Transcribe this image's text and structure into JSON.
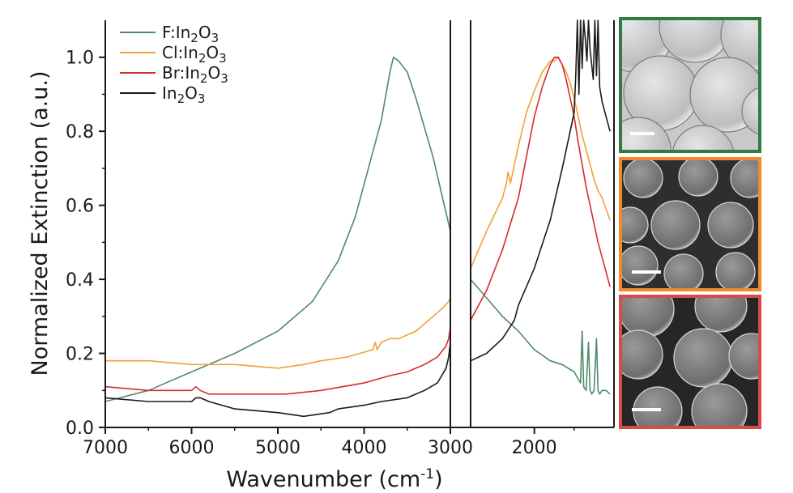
{
  "chart_data": {
    "type": "line",
    "title": "",
    "xlabel": "Wavenumber (cm",
    "xlabel_sup": "-1",
    "xlabel_suffix": ")",
    "ylabel": "Normalized Extinction (a.u.)",
    "xlim": [
      7000,
      1000
    ],
    "ylim": [
      0.0,
      1.1
    ],
    "x_axis_direction": "reversed",
    "x_ticks": [
      7000,
      6000,
      5000,
      4000,
      3000,
      2000
    ],
    "x_tick_labels": [
      "7000",
      "6000",
      "5000",
      "4000",
      "3000",
      "2000"
    ],
    "y_ticks": [
      0.0,
      0.2,
      0.4,
      0.6,
      0.8,
      1.0
    ],
    "y_tick_labels": [
      "0.0",
      "0.2",
      "0.4",
      "0.6",
      "0.8",
      "1.0"
    ],
    "axis_break": [
      3000,
      2800
    ],
    "grid": false,
    "legend_position": "top-left",
    "series": [
      {
        "name": "F:In2O3",
        "color": "#4e8a6c",
        "x": [
          7000,
          6500,
          6000,
          5500,
          5000,
          4600,
          4300,
          4100,
          3950,
          3800,
          3700,
          3660,
          3600,
          3500,
          3400,
          3300,
          3200,
          3100,
          3000,
          2800,
          2600,
          2400,
          2200,
          2000,
          1800,
          1650,
          1500,
          1420,
          1400,
          1380,
          1350,
          1320,
          1300,
          1280,
          1250,
          1220,
          1200,
          1180,
          1150,
          1100,
          1050
        ],
        "y": [
          0.07,
          0.1,
          0.15,
          0.2,
          0.26,
          0.34,
          0.45,
          0.57,
          0.7,
          0.83,
          0.96,
          1.0,
          0.99,
          0.96,
          0.89,
          0.81,
          0.73,
          0.63,
          0.53,
          0.4,
          0.35,
          0.3,
          0.26,
          0.21,
          0.18,
          0.17,
          0.15,
          0.12,
          0.26,
          0.11,
          0.1,
          0.23,
          0.1,
          0.09,
          0.1,
          0.24,
          0.1,
          0.09,
          0.1,
          0.1,
          0.09
        ]
      },
      {
        "name": "Cl:In2O3",
        "color": "#f0a135",
        "x": [
          7000,
          6500,
          6000,
          5500,
          5000,
          4700,
          4500,
          4200,
          3900,
          3870,
          3850,
          3800,
          3700,
          3600,
          3500,
          3400,
          3200,
          3100,
          3020,
          3000,
          2800,
          2600,
          2400,
          2350,
          2330,
          2300,
          2200,
          2100,
          2000,
          1900,
          1800,
          1750,
          1700,
          1650,
          1600,
          1550,
          1500,
          1450,
          1400,
          1350,
          1300,
          1250,
          1200,
          1150,
          1050
        ],
        "y": [
          0.18,
          0.18,
          0.17,
          0.17,
          0.16,
          0.17,
          0.18,
          0.19,
          0.21,
          0.23,
          0.21,
          0.23,
          0.24,
          0.24,
          0.25,
          0.26,
          0.3,
          0.32,
          0.34,
          0.35,
          0.43,
          0.53,
          0.62,
          0.66,
          0.69,
          0.66,
          0.76,
          0.85,
          0.91,
          0.96,
          0.99,
          0.99,
          1.0,
          0.98,
          0.96,
          0.93,
          0.89,
          0.84,
          0.79,
          0.75,
          0.71,
          0.67,
          0.64,
          0.62,
          0.56
        ]
      },
      {
        "name": "Br:In2O3",
        "color": "#d62b2b",
        "x": [
          7000,
          6500,
          6000,
          5950,
          5900,
          5800,
          5500,
          5000,
          4900,
          4500,
          4000,
          3700,
          3500,
          3300,
          3150,
          3050,
          3020,
          3000,
          2800,
          2600,
          2400,
          2200,
          2100,
          2000,
          1900,
          1800,
          1750,
          1700,
          1650,
          1600,
          1550,
          1500,
          1450,
          1400,
          1350,
          1300,
          1250,
          1200,
          1150,
          1100,
          1050
        ],
        "y": [
          0.11,
          0.1,
          0.1,
          0.11,
          0.1,
          0.09,
          0.09,
          0.09,
          0.09,
          0.1,
          0.12,
          0.14,
          0.15,
          0.17,
          0.19,
          0.22,
          0.24,
          0.27,
          0.29,
          0.37,
          0.48,
          0.62,
          0.73,
          0.84,
          0.92,
          0.98,
          1.0,
          1.0,
          0.98,
          0.94,
          0.89,
          0.84,
          0.77,
          0.71,
          0.65,
          0.6,
          0.55,
          0.5,
          0.46,
          0.42,
          0.38
        ]
      },
      {
        "name": "In2O3",
        "color": "#1a1a1a",
        "x": [
          7000,
          6500,
          6000,
          5950,
          5900,
          5800,
          5500,
          5000,
          4700,
          4400,
          4300,
          4000,
          3800,
          3500,
          3300,
          3150,
          3050,
          3020,
          3000,
          2800,
          2600,
          2400,
          2250,
          2200,
          2000,
          1800,
          1650,
          1550,
          1500,
          1480,
          1460,
          1440,
          1420,
          1400,
          1380,
          1360,
          1340,
          1320,
          1300,
          1280,
          1260,
          1240,
          1220,
          1200,
          1180,
          1150,
          1100,
          1050
        ],
        "y": [
          0.08,
          0.07,
          0.07,
          0.08,
          0.08,
          0.07,
          0.05,
          0.04,
          0.03,
          0.04,
          0.05,
          0.06,
          0.07,
          0.08,
          0.1,
          0.12,
          0.16,
          0.19,
          0.23,
          0.18,
          0.2,
          0.24,
          0.29,
          0.33,
          0.43,
          0.56,
          0.7,
          0.8,
          0.85,
          0.95,
          1.1,
          0.9,
          1.1,
          0.97,
          1.1,
          1.05,
          0.99,
          1.1,
          1.02,
          0.98,
          0.94,
          1.1,
          0.95,
          1.1,
          0.92,
          0.88,
          0.84,
          0.8
        ]
      }
    ]
  },
  "legend": {
    "items": [
      {
        "prefix": "F:In",
        "sub1": "2",
        "mid": "O",
        "sub2": "3",
        "color": "#4e8a6c"
      },
      {
        "prefix": "Cl:In",
        "sub1": "2",
        "mid": "O",
        "sub2": "3",
        "color": "#f0a135"
      },
      {
        "prefix": "Br:In",
        "sub1": "2",
        "mid": "O",
        "sub2": "3",
        "color": "#d62b2b"
      },
      {
        "prefix": "In",
        "sub1": "2",
        "mid": "O",
        "sub2": "3",
        "color": "#1a1a1a"
      }
    ]
  },
  "sem_panels": [
    {
      "name": "sem-image-f-in2o3",
      "border_color": "#2e7d3e",
      "background": "#c9c9c9"
    },
    {
      "name": "sem-image-cl-in2o3",
      "border_color": "#f08a2c",
      "background": "#2e2e2e"
    },
    {
      "name": "sem-image-br-in2o3",
      "border_color": "#d94a4a",
      "background": "#262626"
    }
  ]
}
